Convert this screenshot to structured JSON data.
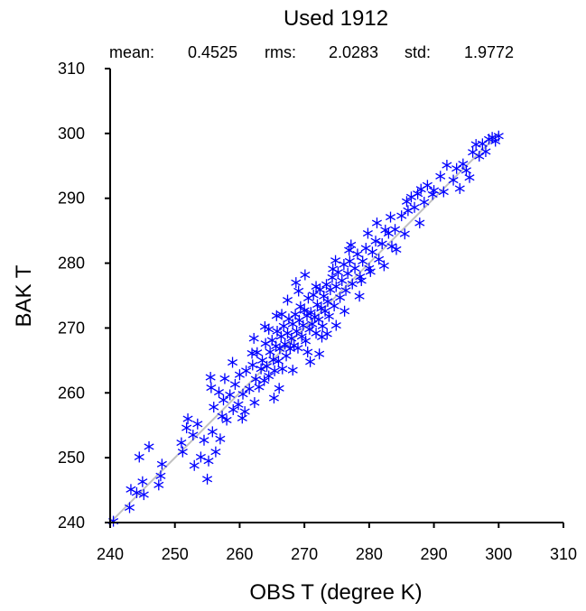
{
  "chart_data": {
    "type": "scatter",
    "title": "Used  1912",
    "stats": {
      "mean_label": "mean:",
      "mean_value": "0.4525",
      "rms_label": "rms:",
      "rms_value": "2.0283",
      "std_label": "std:",
      "std_value": "1.9772"
    },
    "xlabel": "OBS T  (degree K)",
    "ylabel": "BAK T",
    "xlim": [
      240,
      310
    ],
    "ylim": [
      240,
      310
    ],
    "xticks": [
      240,
      250,
      260,
      270,
      280,
      290,
      300,
      310
    ],
    "yticks": [
      240,
      250,
      260,
      270,
      280,
      290,
      300,
      310
    ],
    "marker": "asterisk",
    "marker_color": "#0000ff",
    "reference_line": {
      "from": [
        240,
        240
      ],
      "to": [
        300,
        300
      ],
      "color": "#c0c0c0"
    },
    "grid": false,
    "points": [
      [
        240.5,
        240.2
      ],
      [
        243.0,
        242.3
      ],
      [
        243.2,
        245.1
      ],
      [
        244.1,
        244.6
      ],
      [
        244.5,
        250.1
      ],
      [
        245.0,
        246.3
      ],
      [
        245.2,
        244.3
      ],
      [
        246.0,
        251.7
      ],
      [
        247.5,
        245.8
      ],
      [
        247.8,
        247.2
      ],
      [
        248.0,
        249.0
      ],
      [
        251.0,
        252.3
      ],
      [
        251.2,
        250.9
      ],
      [
        251.8,
        254.6
      ],
      [
        252.0,
        256.0
      ],
      [
        252.8,
        253.5
      ],
      [
        253.0,
        248.8
      ],
      [
        253.5,
        255.2
      ],
      [
        254.0,
        250.1
      ],
      [
        254.5,
        252.7
      ],
      [
        255.0,
        246.7
      ],
      [
        255.2,
        249.5
      ],
      [
        255.5,
        262.4
      ],
      [
        255.8,
        254.0
      ],
      [
        256.0,
        257.8
      ],
      [
        256.3,
        250.9
      ],
      [
        256.8,
        260.1
      ],
      [
        257.0,
        252.9
      ],
      [
        257.3,
        256.4
      ],
      [
        257.5,
        258.9
      ],
      [
        258.0,
        255.8
      ],
      [
        258.5,
        259.7
      ],
      [
        259.0,
        257.4
      ],
      [
        259.3,
        261.3
      ],
      [
        259.8,
        258.2
      ],
      [
        260.0,
        262.8
      ],
      [
        260.5,
        259.8
      ],
      [
        260.8,
        257.1
      ],
      [
        261.0,
        263.4
      ],
      [
        261.5,
        260.6
      ],
      [
        262.0,
        264.3
      ],
      [
        262.3,
        258.5
      ],
      [
        262.5,
        262.1
      ],
      [
        262.7,
        266.2
      ],
      [
        263.0,
        260.9
      ],
      [
        263.3,
        263.7
      ],
      [
        263.5,
        265.0
      ],
      [
        263.8,
        261.9
      ],
      [
        264.0,
        267.6
      ],
      [
        264.2,
        264.1
      ],
      [
        264.5,
        262.6
      ],
      [
        264.7,
        266.3
      ],
      [
        265.0,
        268.1
      ],
      [
        265.2,
        265.1
      ],
      [
        265.4,
        263.4
      ],
      [
        265.6,
        267.2
      ],
      [
        265.8,
        269.5
      ],
      [
        266.0,
        264.9
      ],
      [
        266.2,
        266.8
      ],
      [
        266.4,
        268.7
      ],
      [
        266.6,
        263.7
      ],
      [
        266.8,
        270.3
      ],
      [
        267.0,
        267.5
      ],
      [
        267.2,
        265.7
      ],
      [
        267.4,
        269.2
      ],
      [
        267.6,
        271.4
      ],
      [
        267.8,
        266.8
      ],
      [
        268.0,
        268.4
      ],
      [
        268.2,
        270.6
      ],
      [
        268.4,
        267.3
      ],
      [
        268.6,
        272.1
      ],
      [
        268.8,
        269.5
      ],
      [
        269.0,
        266.9
      ],
      [
        269.2,
        271.2
      ],
      [
        269.4,
        273.3
      ],
      [
        269.6,
        268.7
      ],
      [
        269.8,
        270.4
      ],
      [
        270.0,
        272.7
      ],
      [
        270.2,
        268.0
      ],
      [
        270.4,
        271.9
      ],
      [
        270.6,
        274.6
      ],
      [
        270.8,
        269.8
      ],
      [
        271.0,
        272.4
      ],
      [
        271.2,
        270.6
      ],
      [
        271.4,
        275.1
      ],
      [
        271.6,
        271.7
      ],
      [
        271.8,
        269.2
      ],
      [
        272.0,
        273.6
      ],
      [
        272.2,
        271.3
      ],
      [
        272.4,
        275.9
      ],
      [
        272.6,
        273.0
      ],
      [
        272.8,
        270.3
      ],
      [
        273.0,
        274.9
      ],
      [
        273.2,
        272.6
      ],
      [
        273.4,
        276.7
      ],
      [
        273.6,
        274.1
      ],
      [
        273.8,
        271.8
      ],
      [
        274.0,
        275.9
      ],
      [
        274.3,
        277.8
      ],
      [
        274.6,
        273.4
      ],
      [
        274.9,
        276.4
      ],
      [
        275.2,
        278.6
      ],
      [
        275.5,
        274.7
      ],
      [
        275.8,
        277.3
      ],
      [
        276.1,
        279.8
      ],
      [
        276.4,
        275.8
      ],
      [
        276.7,
        278.4
      ],
      [
        277.0,
        280.3
      ],
      [
        277.4,
        276.8
      ],
      [
        277.8,
        279.2
      ],
      [
        278.2,
        281.4
      ],
      [
        278.6,
        277.9
      ],
      [
        279.0,
        280.3
      ],
      [
        279.5,
        282.3
      ],
      [
        280.0,
        279.2
      ],
      [
        280.5,
        281.7
      ],
      [
        281.0,
        283.4
      ],
      [
        281.5,
        280.6
      ],
      [
        282.0,
        283.0
      ],
      [
        282.5,
        285.1
      ],
      [
        283.0,
        284.6
      ],
      [
        283.5,
        282.6
      ],
      [
        284.0,
        285.2
      ],
      [
        285.0,
        287.3
      ],
      [
        285.5,
        284.5
      ],
      [
        286.0,
        288.1
      ],
      [
        286.5,
        290.2
      ],
      [
        287.0,
        288.6
      ],
      [
        287.5,
        290.7
      ],
      [
        288.0,
        291.4
      ],
      [
        288.5,
        289.4
      ],
      [
        289.0,
        292.0
      ],
      [
        290.0,
        291.2
      ],
      [
        291.0,
        293.4
      ],
      [
        291.5,
        291.0
      ],
      [
        292.0,
        295.1
      ],
      [
        293.0,
        292.8
      ],
      [
        293.5,
        294.6
      ],
      [
        294.0,
        291.5
      ],
      [
        294.5,
        295.3
      ],
      [
        295.0,
        294.3
      ],
      [
        295.5,
        293.2
      ],
      [
        296.0,
        297.1
      ],
      [
        296.5,
        298.3
      ],
      [
        297.0,
        296.5
      ],
      [
        297.5,
        298.4
      ],
      [
        298.0,
        297.2
      ],
      [
        298.5,
        299.1
      ],
      [
        299.0,
        299.4
      ],
      [
        299.5,
        298.8
      ],
      [
        300.0,
        299.6
      ],
      [
        264.5,
        269.8
      ],
      [
        265.3,
        259.2
      ],
      [
        266.5,
        272.1
      ],
      [
        268.2,
        263.5
      ],
      [
        270.5,
        266.3
      ],
      [
        271.8,
        276.4
      ],
      [
        273.5,
        269.1
      ],
      [
        274.8,
        280.4
      ],
      [
        276.2,
        272.6
      ],
      [
        277.2,
        282.8
      ],
      [
        278.5,
        274.9
      ],
      [
        279.8,
        284.6
      ],
      [
        280.2,
        278.7
      ],
      [
        282.3,
        279.6
      ],
      [
        284.2,
        282.1
      ],
      [
        262.2,
        268.4
      ],
      [
        263.9,
        270.2
      ],
      [
        265.7,
        271.9
      ],
      [
        267.4,
        274.3
      ],
      [
        269.1,
        275.7
      ],
      [
        270.9,
        264.8
      ],
      [
        272.7,
        268.6
      ],
      [
        274.4,
        279.1
      ],
      [
        276.9,
        282.0
      ],
      [
        278.8,
        277.3
      ],
      [
        281.2,
        286.2
      ],
      [
        283.3,
        287.1
      ],
      [
        258.9,
        264.7
      ],
      [
        260.4,
        256.1
      ],
      [
        261.9,
        266.1
      ],
      [
        255.6,
        260.8
      ],
      [
        257.7,
        262.2
      ],
      [
        285.8,
        289.5
      ],
      [
        287.8,
        286.2
      ],
      [
        289.8,
        290.6
      ],
      [
        268.7,
        277.0
      ],
      [
        270.1,
        278.2
      ],
      [
        272.3,
        266.0
      ],
      [
        274.9,
        270.4
      ],
      [
        266.1,
        260.7
      ]
    ]
  }
}
